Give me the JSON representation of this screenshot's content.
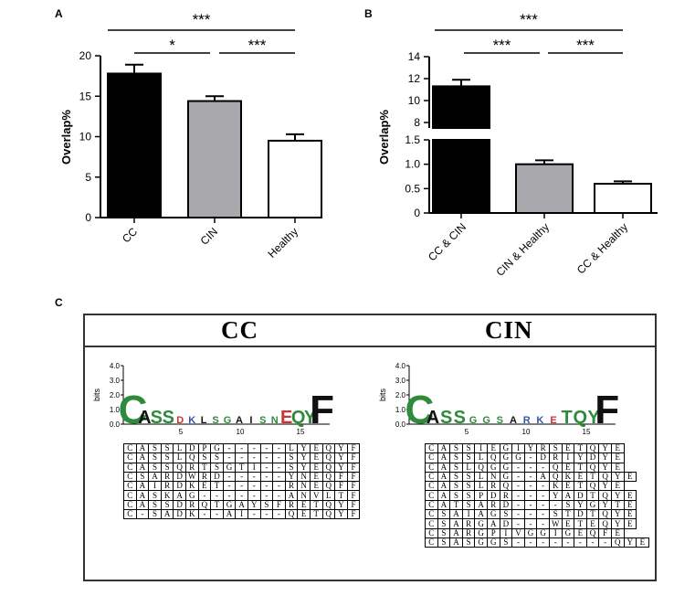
{
  "panels": {
    "a": "A",
    "b": "B",
    "c": "C"
  },
  "chart_data": [
    {
      "type": "bar",
      "panel": "A",
      "categories": [
        "CC",
        "CIN",
        "Healthy"
      ],
      "values": [
        17.8,
        14.4,
        9.5
      ],
      "errors": [
        1.1,
        0.6,
        0.8
      ],
      "colors": [
        "#000000",
        "#a9a9ad",
        "#ffffff"
      ],
      "ylabel": "Overlap%",
      "ylim": [
        0,
        20
      ],
      "yticks": [
        "0",
        "5",
        "10",
        "15",
        "20"
      ],
      "significance": [
        {
          "from": "CC",
          "to": "Healthy",
          "label": "***"
        },
        {
          "from": "CC",
          "to": "CIN",
          "label": "*"
        },
        {
          "from": "CIN",
          "to": "Healthy",
          "label": "***"
        }
      ]
    },
    {
      "type": "bar",
      "panel": "B",
      "categories": [
        "CC & CIN",
        "CIN & Healthy",
        "CC & Healthy"
      ],
      "values": [
        11.3,
        1.0,
        0.6
      ],
      "errors": [
        0.6,
        0.08,
        0.05
      ],
      "colors": [
        "#000000",
        "#a9a9ad",
        "#ffffff"
      ],
      "ylabel": "Overlap%",
      "axis_break": {
        "lower": [
          0,
          1.5
        ],
        "upper": [
          7.5,
          14
        ]
      },
      "yticks_lower": [
        "0",
        "0.5",
        "1.0",
        "1.5"
      ],
      "yticks_upper": [
        "8",
        "10",
        "12",
        "14"
      ],
      "significance": [
        {
          "from": "CC & CIN",
          "to": "CC & Healthy",
          "label": "***"
        },
        {
          "from": "CC & CIN",
          "to": "CIN & Healthy",
          "label": "***"
        },
        {
          "from": "CIN & Healthy",
          "to": "CC & Healthy",
          "label": "***"
        }
      ]
    }
  ],
  "logos": [
    {
      "title": "CC",
      "yaxis_label": "bits",
      "yticks": [
        "0.0",
        "1.0",
        "2.0",
        "3.0",
        "4.0"
      ],
      "xticks": [
        "5",
        "10",
        "15"
      ],
      "letters": "CASSDKLSGAISNEQYF",
      "sequences": [
        "CASSLDPG-----LYEQYF",
        "CASSLQSS-----SYEQYF",
        "CASSQRTSGTI--SYEQYF",
        "CSARDWRD-----YNEQFF",
        "CAIRDKET-----RNEQFF",
        "CASKAG-------ANVLTF",
        "CASSDRQTGAYSFRETQYF",
        "C-SADK--AI---QETQYF"
      ]
    },
    {
      "title": "CIN",
      "yaxis_label": "bits",
      "yticks": [
        "0.0",
        "1.0",
        "2.0",
        "3.0",
        "4.0"
      ],
      "xticks": [
        "5",
        "10",
        "15"
      ],
      "letters": "CASSGGSARKETQYF",
      "sequences": [
        "CASSIEGIYRSETQYE",
        "CASSLQGG-DRIYDYE",
        "CASLQGG---QETQYE",
        "CASSLNG--AQKETQYE",
        "CASSLRQ---KETQYE",
        "CASSPDR---YADTQYE",
        "CATSARD----SYGYTE",
        "CSAIAGS---STDTQYE",
        "CSARGAD---WETEQYE",
        "CSARGPIVGGIGEQFE",
        "CSASGGS--------QYE"
      ]
    }
  ]
}
